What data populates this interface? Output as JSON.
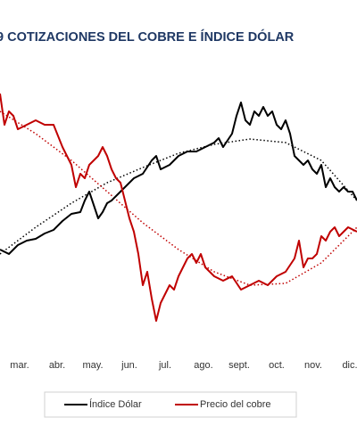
{
  "chart_data": {
    "type": "line",
    "title": "9 COTIZACIONES DEL COBRE E ÍNDICE DÓLAR",
    "xlim": [
      0,
      400
    ],
    "ylim": [
      0,
      280
    ],
    "xticks": [
      {
        "value": 22,
        "label": "mar."
      },
      {
        "value": 64,
        "label": "abr."
      },
      {
        "value": 104,
        "label": "may."
      },
      {
        "value": 145,
        "label": "jun."
      },
      {
        "value": 185,
        "label": "jul."
      },
      {
        "value": 228,
        "label": "ago."
      },
      {
        "value": 268,
        "label": "sept."
      },
      {
        "value": 310,
        "label": "oct."
      },
      {
        "value": 351,
        "label": "nov."
      },
      {
        "value": 392,
        "label": "dic."
      }
    ],
    "trend_x": [
      0,
      40,
      80,
      120,
      160,
      200,
      240,
      280,
      320,
      360,
      400
    ],
    "series": [
      {
        "name": "Índice Dólar",
        "color": "#000000",
        "x": [
          0,
          10,
          20,
          30,
          40,
          50,
          60,
          70,
          80,
          90,
          95,
          100,
          105,
          110,
          115,
          120,
          125,
          130,
          140,
          150,
          160,
          170,
          175,
          180,
          190,
          200,
          210,
          220,
          230,
          240,
          245,
          250,
          260,
          265,
          270,
          275,
          280,
          285,
          290,
          295,
          300,
          305,
          310,
          315,
          320,
          325,
          330,
          335,
          340,
          345,
          350,
          355,
          360,
          365,
          370,
          375,
          380,
          385,
          390,
          395,
          400
        ],
        "values": [
          100,
          95,
          105,
          110,
          112,
          118,
          122,
          132,
          140,
          142,
          155,
          165,
          150,
          135,
          142,
          152,
          155,
          160,
          170,
          180,
          185,
          200,
          205,
          190,
          195,
          205,
          210,
          210,
          215,
          220,
          225,
          215,
          230,
          250,
          265,
          245,
          240,
          255,
          250,
          260,
          250,
          255,
          240,
          235,
          245,
          230,
          205,
          200,
          195,
          200,
          190,
          185,
          195,
          170,
          180,
          170,
          165,
          170,
          165,
          165,
          155
        ],
        "trend": [
          95,
          125,
          152,
          175,
          192,
          208,
          218,
          224,
          220,
          200,
          155
        ]
      },
      {
        "name": "Precio del cobre",
        "color": "#c00000",
        "x": [
          0,
          5,
          10,
          15,
          20,
          30,
          40,
          50,
          60,
          70,
          75,
          80,
          85,
          90,
          95,
          100,
          110,
          115,
          120,
          125,
          130,
          135,
          140,
          145,
          150,
          155,
          160,
          165,
          170,
          175,
          180,
          185,
          190,
          195,
          200,
          205,
          210,
          215,
          220,
          225,
          230,
          240,
          250,
          260,
          270,
          280,
          290,
          300,
          310,
          320,
          330,
          335,
          340,
          345,
          350,
          355,
          360,
          365,
          370,
          375,
          380,
          385,
          390,
          400
        ],
        "values": [
          275,
          240,
          255,
          250,
          235,
          240,
          245,
          240,
          240,
          215,
          205,
          195,
          170,
          185,
          180,
          195,
          205,
          215,
          205,
          190,
          180,
          175,
          155,
          135,
          120,
          95,
          60,
          75,
          45,
          20,
          40,
          50,
          60,
          55,
          70,
          80,
          90,
          95,
          85,
          95,
          80,
          70,
          65,
          70,
          55,
          60,
          65,
          60,
          70,
          75,
          90,
          110,
          80,
          90,
          90,
          95,
          115,
          110,
          120,
          125,
          115,
          120,
          125,
          120
        ],
        "trend": [
          255,
          230,
          200,
          165,
          130,
          100,
          75,
          60,
          62,
          85,
          125
        ]
      }
    ]
  }
}
